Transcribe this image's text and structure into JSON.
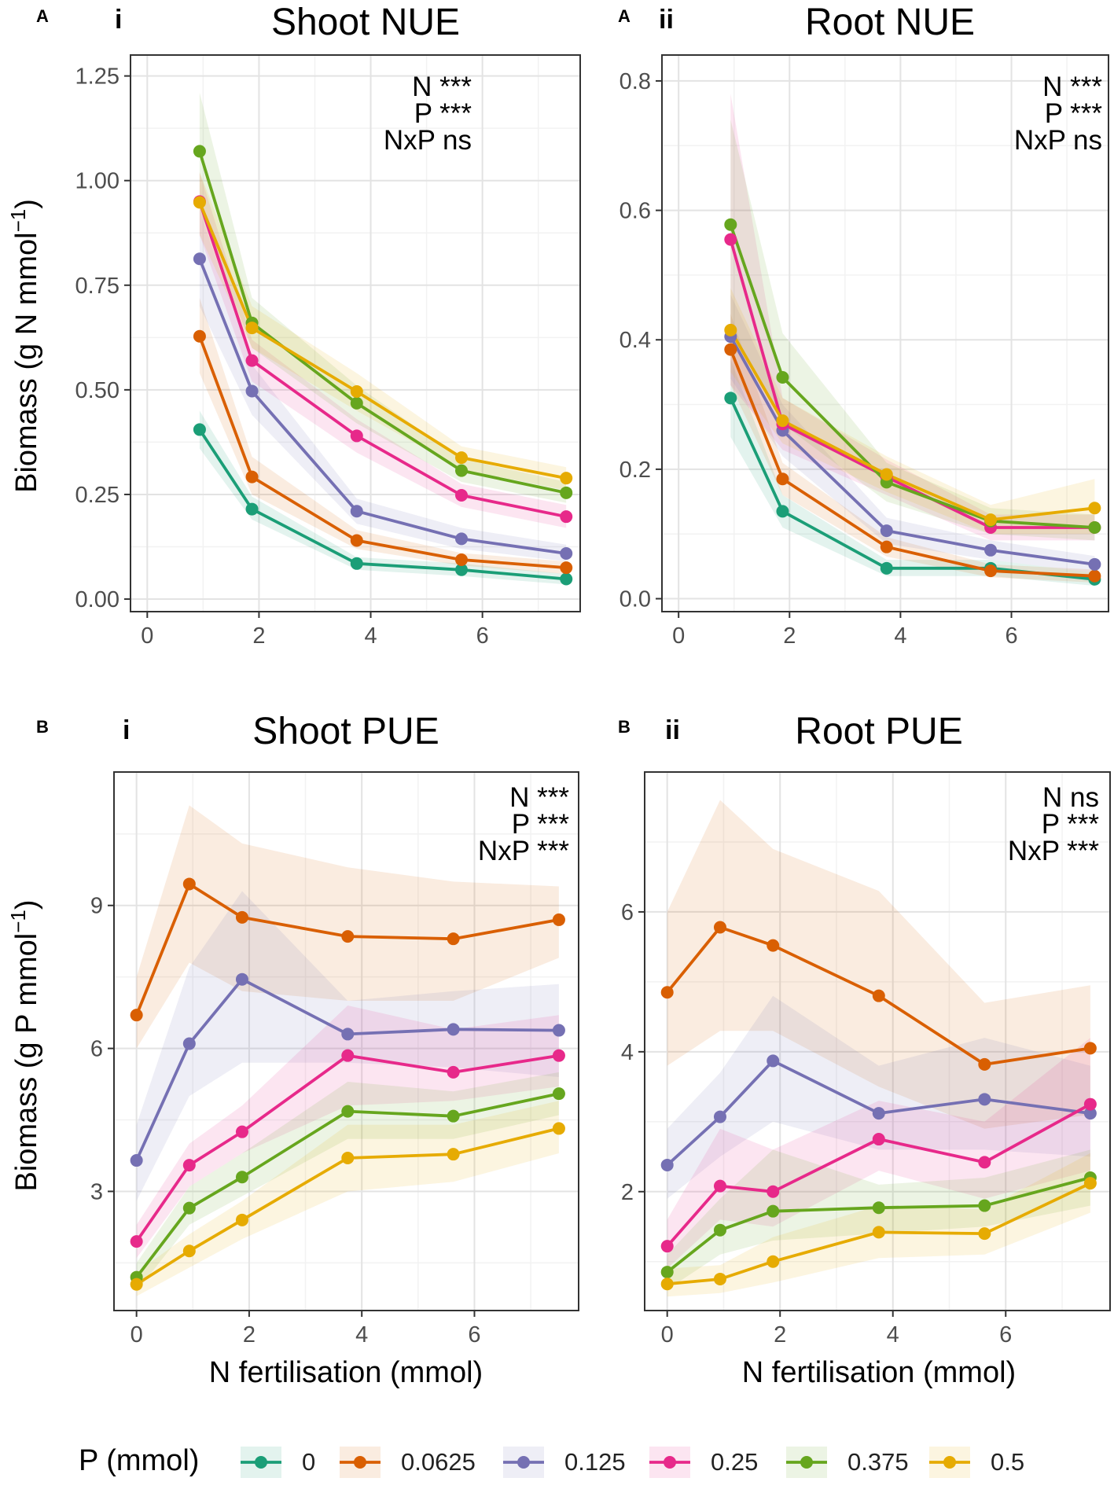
{
  "figure": {
    "legend": {
      "title": "P (mmol)",
      "entries": [
        "0",
        "0.0625",
        "0.125",
        "0.25",
        "0.375",
        "0.5"
      ],
      "colors": [
        "#1b9e77",
        "#d95f02",
        "#7570b3",
        "#e7298a",
        "#66a61e",
        "#e6ab02"
      ]
    }
  },
  "chart_data": [
    {
      "type": "line",
      "panel_letter": "A",
      "panel_roman": "i",
      "title": "Shoot NUE",
      "xlabel": "",
      "ylabel": "Biomass (g N mmol",
      "ylabel_sup": "−1",
      "ylabel_close": ")",
      "xlim": [
        -0.3,
        7.75
      ],
      "ylim": [
        -0.03,
        1.3
      ],
      "xticks": [
        0,
        2,
        4,
        6
      ],
      "yticks": [
        0,
        0.25,
        0.5,
        0.75,
        1.0
      ],
      "ytick_labels": [
        "0.00",
        "0.25",
        "0.50",
        "0.75",
        "1.00",
        "1.25"
      ],
      "ytick_values": [
        0,
        0.25,
        0.5,
        0.75,
        1.0,
        1.25
      ],
      "stats": [
        "N ***",
        "P ***",
        "NxP ns"
      ],
      "x": [
        0.9375,
        1.875,
        3.75,
        5.625,
        7.5
      ],
      "series": [
        {
          "name": "0",
          "values": [
            0.405,
            0.215,
            0.085,
            0.07,
            0.048
          ],
          "lower": [
            0.36,
            0.19,
            0.07,
            0.055,
            0.035
          ],
          "upper": [
            0.45,
            0.245,
            0.1,
            0.085,
            0.06
          ]
        },
        {
          "name": "0.0625",
          "values": [
            0.628,
            0.292,
            0.14,
            0.094,
            0.075
          ],
          "lower": [
            0.54,
            0.25,
            0.12,
            0.08,
            0.06
          ],
          "upper": [
            0.72,
            0.34,
            0.165,
            0.11,
            0.09
          ]
        },
        {
          "name": "0.125",
          "values": [
            0.813,
            0.497,
            0.21,
            0.144,
            0.109
          ],
          "lower": [
            0.7,
            0.44,
            0.18,
            0.12,
            0.09
          ],
          "upper": [
            0.93,
            0.56,
            0.24,
            0.17,
            0.13
          ]
        },
        {
          "name": "0.25",
          "values": [
            0.95,
            0.57,
            0.39,
            0.248,
            0.197
          ],
          "lower": [
            0.87,
            0.52,
            0.35,
            0.22,
            0.17
          ],
          "upper": [
            1.02,
            0.62,
            0.43,
            0.275,
            0.225
          ]
        },
        {
          "name": "0.375",
          "values": [
            1.07,
            0.66,
            0.468,
            0.307,
            0.254
          ],
          "lower": [
            0.93,
            0.6,
            0.42,
            0.28,
            0.23
          ],
          "upper": [
            1.21,
            0.72,
            0.51,
            0.335,
            0.28
          ]
        },
        {
          "name": "0.5",
          "values": [
            0.948,
            0.648,
            0.496,
            0.338,
            0.289
          ],
          "lower": [
            0.87,
            0.6,
            0.45,
            0.31,
            0.26
          ],
          "upper": [
            1.02,
            0.7,
            0.54,
            0.365,
            0.315
          ]
        }
      ]
    },
    {
      "type": "line",
      "panel_letter": "A",
      "panel_roman": "ii",
      "title": "Root NUE",
      "xlabel": "",
      "ylabel": "",
      "xlim": [
        -0.3,
        7.75
      ],
      "ylim": [
        -0.02,
        0.84
      ],
      "xticks": [
        0,
        2,
        4,
        6
      ],
      "ytick_labels": [
        "0.0",
        "0.2",
        "0.4",
        "0.6",
        "0.8"
      ],
      "ytick_values": [
        0,
        0.2,
        0.4,
        0.6,
        0.8
      ],
      "stats": [
        "N ***",
        "P ***",
        "NxP ns"
      ],
      "x": [
        0.9375,
        1.875,
        3.75,
        5.625,
        7.5
      ],
      "series": [
        {
          "name": "0",
          "values": [
            0.31,
            0.135,
            0.047,
            0.047,
            0.03
          ],
          "lower": [
            0.25,
            0.11,
            0.035,
            0.035,
            0.02
          ],
          "upper": [
            0.37,
            0.16,
            0.06,
            0.06,
            0.04
          ]
        },
        {
          "name": "0.0625",
          "values": [
            0.385,
            0.185,
            0.08,
            0.043,
            0.035
          ],
          "lower": [
            0.33,
            0.16,
            0.065,
            0.033,
            0.025
          ],
          "upper": [
            0.44,
            0.21,
            0.095,
            0.053,
            0.045
          ]
        },
        {
          "name": "0.125",
          "values": [
            0.405,
            0.26,
            0.105,
            0.075,
            0.053
          ],
          "lower": [
            0.34,
            0.22,
            0.085,
            0.06,
            0.04
          ],
          "upper": [
            0.47,
            0.3,
            0.125,
            0.09,
            0.066
          ]
        },
        {
          "name": "0.25",
          "values": [
            0.555,
            0.27,
            0.188,
            0.11,
            0.11
          ],
          "lower": [
            0.33,
            0.23,
            0.16,
            0.09,
            0.09
          ],
          "upper": [
            0.78,
            0.31,
            0.215,
            0.13,
            0.13
          ]
        },
        {
          "name": "0.375",
          "values": [
            0.578,
            0.342,
            0.18,
            0.12,
            0.11
          ],
          "lower": [
            0.42,
            0.27,
            0.15,
            0.1,
            0.09
          ],
          "upper": [
            0.74,
            0.41,
            0.21,
            0.14,
            0.13
          ]
        },
        {
          "name": "0.5",
          "values": [
            0.415,
            0.275,
            0.192,
            0.122,
            0.14
          ],
          "lower": [
            0.35,
            0.24,
            0.165,
            0.1,
            0.1
          ],
          "upper": [
            0.48,
            0.31,
            0.22,
            0.145,
            0.185
          ]
        }
      ]
    },
    {
      "type": "line",
      "panel_letter": "B",
      "panel_roman": "i",
      "title": "Shoot PUE",
      "xlabel": "N fertilisation (mmol)",
      "ylabel": "Biomass (g P mmol",
      "ylabel_sup": "−1",
      "ylabel_close": ")",
      "xlim": [
        -0.4,
        7.85
      ],
      "ylim": [
        0.5,
        11.8
      ],
      "xticks": [
        0,
        2,
        4,
        6
      ],
      "ytick_labels": [
        "3",
        "6",
        "9"
      ],
      "ytick_values": [
        3,
        6,
        9
      ],
      "stats": [
        "N ***",
        "P ***",
        "NxP ***"
      ],
      "x": [
        0,
        0.9375,
        1.875,
        3.75,
        5.625,
        7.5
      ],
      "series": [
        {
          "name": "0.0625",
          "values": [
            6.7,
            9.45,
            8.75,
            8.35,
            8.3,
            8.7
          ],
          "lower": [
            6.0,
            7.8,
            7.2,
            7.0,
            7.0,
            7.9
          ],
          "upper": [
            7.5,
            11.1,
            10.3,
            9.8,
            9.5,
            9.4
          ]
        },
        {
          "name": "0.125",
          "values": [
            3.65,
            6.1,
            7.45,
            6.3,
            6.4,
            6.38
          ],
          "lower": [
            2.8,
            5.0,
            5.7,
            5.7,
            5.6,
            5.4
          ],
          "upper": [
            4.4,
            7.7,
            9.3,
            7.0,
            7.2,
            7.35
          ]
        },
        {
          "name": "0.25",
          "values": [
            1.95,
            3.55,
            4.25,
            5.85,
            5.5,
            5.85
          ],
          "lower": [
            1.6,
            3.1,
            3.8,
            4.8,
            4.9,
            5.2
          ],
          "upper": [
            2.3,
            4.0,
            4.8,
            6.9,
            6.4,
            6.7
          ]
        },
        {
          "name": "0.375",
          "values": [
            1.2,
            2.65,
            3.3,
            4.68,
            4.58,
            5.05
          ],
          "lower": [
            0.9,
            2.3,
            2.9,
            4.1,
            4.1,
            4.6
          ],
          "upper": [
            1.5,
            3.1,
            3.8,
            5.3,
            5.1,
            5.5
          ]
        },
        {
          "name": "0.5",
          "values": [
            1.05,
            1.75,
            2.4,
            3.7,
            3.78,
            4.32
          ],
          "lower": [
            0.8,
            1.4,
            2.0,
            3.0,
            3.2,
            3.8
          ],
          "upper": [
            1.3,
            2.1,
            2.8,
            4.4,
            4.4,
            4.9
          ]
        }
      ]
    },
    {
      "type": "line",
      "panel_letter": "B",
      "panel_roman": "ii",
      "title": "Root PUE",
      "xlabel": "N fertilisation (mmol)",
      "ylabel": "",
      "xlim": [
        -0.4,
        7.85
      ],
      "ylim": [
        0.3,
        8.0
      ],
      "xticks": [
        0,
        2,
        4,
        6
      ],
      "ytick_labels": [
        "2",
        "4",
        "6"
      ],
      "ytick_values": [
        2,
        4,
        6
      ],
      "stats": [
        "N ns",
        "P ***",
        "NxP ***"
      ],
      "x": [
        0,
        0.9375,
        1.875,
        3.75,
        5.625,
        7.5
      ],
      "series": [
        {
          "name": "0.0625",
          "values": [
            4.85,
            5.78,
            5.52,
            4.8,
            3.82,
            4.05
          ],
          "lower": [
            3.8,
            4.3,
            4.3,
            3.5,
            2.9,
            3.1
          ],
          "upper": [
            6.0,
            7.6,
            6.9,
            6.3,
            4.7,
            4.95
          ]
        },
        {
          "name": "0.125",
          "values": [
            2.38,
            3.07,
            3.87,
            3.12,
            3.32,
            3.12
          ],
          "lower": [
            1.9,
            2.5,
            3.0,
            2.6,
            2.6,
            2.5
          ],
          "upper": [
            2.9,
            3.7,
            4.8,
            3.8,
            4.2,
            3.8
          ]
        },
        {
          "name": "0.25",
          "values": [
            1.22,
            2.08,
            2.0,
            2.75,
            2.42,
            3.25
          ],
          "lower": [
            0.9,
            1.6,
            1.5,
            2.3,
            1.9,
            2.3
          ],
          "upper": [
            1.6,
            2.9,
            2.6,
            3.3,
            3.0,
            4.2
          ]
        },
        {
          "name": "0.375",
          "values": [
            0.85,
            1.45,
            1.72,
            1.77,
            1.8,
            2.2
          ],
          "lower": [
            0.6,
            1.1,
            1.3,
            1.4,
            1.5,
            1.8
          ],
          "upper": [
            1.1,
            1.9,
            2.6,
            2.1,
            2.2,
            2.6
          ]
        },
        {
          "name": "0.5",
          "values": [
            0.68,
            0.75,
            1.0,
            1.42,
            1.4,
            2.12
          ],
          "lower": [
            0.5,
            0.55,
            0.7,
            1.05,
            1.1,
            1.7
          ],
          "upper": [
            0.9,
            0.95,
            1.35,
            1.8,
            1.75,
            2.55
          ]
        }
      ]
    }
  ]
}
